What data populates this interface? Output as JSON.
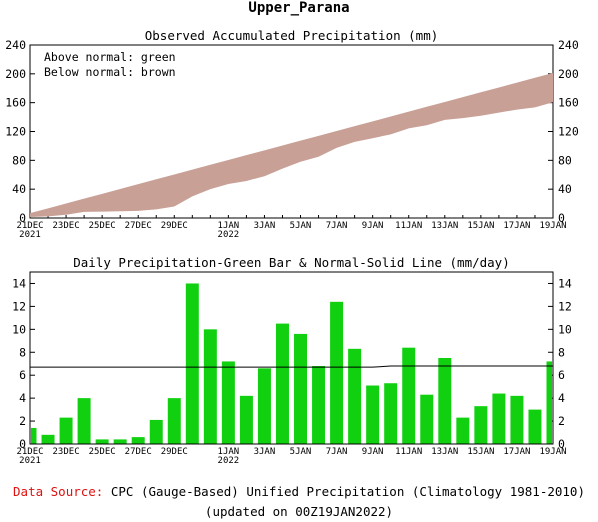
{
  "title": "Upper_Parana",
  "footer": {
    "source_label": "Data Source:",
    "source_text": "CPC (Gauge-Based) Unified Precipitation (Climatology 1981-2010)",
    "updated": "(updated on 00Z19JAN2022)"
  },
  "colors": {
    "band": "#c8a096",
    "bar": "#10d010",
    "source_label": "#e01010"
  },
  "chart_data": [
    {
      "type": "area",
      "title": "Observed Accumulated Precipitation (mm)",
      "legend": [
        "Above normal: green",
        "Below normal: brown"
      ],
      "legend_placement": "top-left",
      "ylim": [
        0,
        240
      ],
      "yticks": [
        0,
        40,
        80,
        120,
        160,
        200,
        240
      ],
      "x": [
        "21DEC",
        "22DEC",
        "23DEC",
        "24DEC",
        "25DEC",
        "26DEC",
        "27DEC",
        "28DEC",
        "29DEC",
        "30DEC",
        "31DEC",
        "1JAN",
        "2JAN",
        "3JAN",
        "4JAN",
        "5JAN",
        "6JAN",
        "7JAN",
        "8JAN",
        "9JAN",
        "10JAN",
        "11JAN",
        "12JAN",
        "13JAN",
        "14JAN",
        "15JAN",
        "16JAN",
        "17JAN",
        "18JAN",
        "19JAN"
      ],
      "xtick_labels": [
        {
          "x": "21DEC",
          "lines": [
            "21DEC",
            "2021"
          ]
        },
        {
          "x": "23DEC",
          "lines": [
            "23DEC"
          ]
        },
        {
          "x": "25DEC",
          "lines": [
            "25DEC"
          ]
        },
        {
          "x": "27DEC",
          "lines": [
            "27DEC"
          ]
        },
        {
          "x": "29DEC",
          "lines": [
            "29DEC"
          ]
        },
        {
          "x": "1JAN",
          "lines": [
            "1JAN",
            "2022"
          ]
        },
        {
          "x": "3JAN",
          "lines": [
            "3JAN"
          ]
        },
        {
          "x": "5JAN",
          "lines": [
            "5JAN"
          ]
        },
        {
          "x": "7JAN",
          "lines": [
            "7JAN"
          ]
        },
        {
          "x": "9JAN",
          "lines": [
            "9JAN"
          ]
        },
        {
          "x": "11JAN",
          "lines": [
            "11JAN"
          ]
        },
        {
          "x": "13JAN",
          "lines": [
            "13JAN"
          ]
        },
        {
          "x": "15JAN",
          "lines": [
            "15JAN"
          ]
        },
        {
          "x": "17JAN",
          "lines": [
            "17JAN"
          ]
        },
        {
          "x": "19JAN",
          "lines": [
            "19JAN"
          ]
        }
      ],
      "series": [
        {
          "name": "Normal",
          "values": [
            6.7,
            13.4,
            20.1,
            26.8,
            33.5,
            40.2,
            47.0,
            53.7,
            60.4,
            67.1,
            73.8,
            80.5,
            87.2,
            93.9,
            100.6,
            107.3,
            114.0,
            120.7,
            127.4,
            134.1,
            140.8,
            147.6,
            154.3,
            161.0,
            167.7,
            174.4,
            181.1,
            187.8,
            194.5,
            201.2
          ]
        },
        {
          "name": "Observed",
          "values": [
            1.4,
            2.2,
            4.5,
            8.5,
            8.9,
            9.3,
            9.9,
            12.0,
            16.0,
            30.0,
            40.0,
            47.2,
            51.4,
            58.0,
            68.5,
            78.1,
            84.9,
            97.3,
            105.6,
            110.7,
            116.0,
            124.4,
            128.7,
            136.2,
            138.5,
            141.8,
            146.2,
            150.4,
            153.4,
            160.6
          ]
        }
      ]
    },
    {
      "type": "bar",
      "title": "Daily Precipitation-Green Bar & Normal-Solid Line (mm/day)",
      "ylim": [
        0,
        15
      ],
      "yticks": [
        0,
        2,
        4,
        6,
        8,
        10,
        12,
        14
      ],
      "x": [
        "21DEC",
        "22DEC",
        "23DEC",
        "24DEC",
        "25DEC",
        "26DEC",
        "27DEC",
        "28DEC",
        "29DEC",
        "30DEC",
        "31DEC",
        "1JAN",
        "2JAN",
        "3JAN",
        "4JAN",
        "5JAN",
        "6JAN",
        "7JAN",
        "8JAN",
        "9JAN",
        "10JAN",
        "11JAN",
        "12JAN",
        "13JAN",
        "14JAN",
        "15JAN",
        "16JAN",
        "17JAN",
        "18JAN",
        "19JAN"
      ],
      "series": [
        {
          "name": "Daily Precipitation",
          "values": [
            1.4,
            0.8,
            2.3,
            4.0,
            0.4,
            0.4,
            0.6,
            2.1,
            4.0,
            14.0,
            10.0,
            7.2,
            4.2,
            6.6,
            10.5,
            9.6,
            6.8,
            12.4,
            8.3,
            5.1,
            5.3,
            8.4,
            4.3,
            7.5,
            2.3,
            3.3,
            4.4,
            4.2,
            3.0,
            7.2
          ]
        },
        {
          "name": "Normal",
          "values": [
            6.7,
            6.7,
            6.7,
            6.7,
            6.7,
            6.7,
            6.7,
            6.7,
            6.7,
            6.7,
            6.7,
            6.7,
            6.7,
            6.7,
            6.7,
            6.7,
            6.7,
            6.7,
            6.7,
            6.7,
            6.8,
            6.8,
            6.8,
            6.8,
            6.8,
            6.8,
            6.8,
            6.8,
            6.8,
            6.8
          ]
        }
      ]
    }
  ]
}
